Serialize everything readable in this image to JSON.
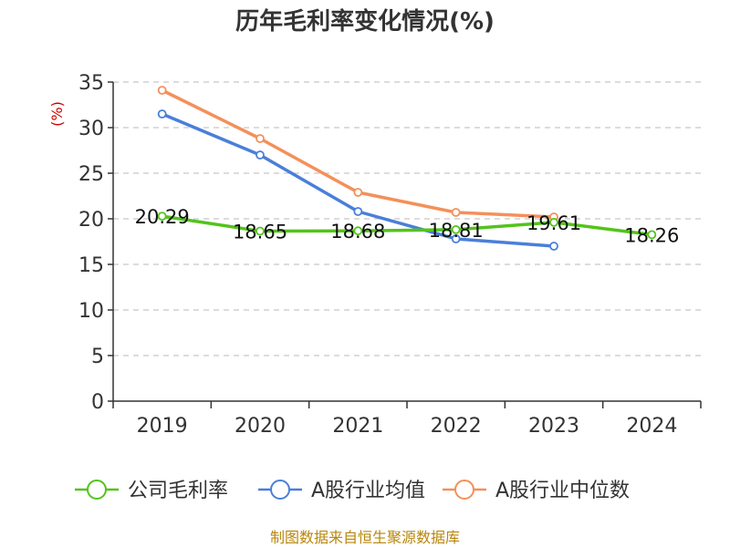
{
  "chart_data": {
    "type": "line",
    "title": "历年毛利率变化情况(%)",
    "ylabel": "(%)",
    "xlabel": "",
    "categories": [
      "2019",
      "2020",
      "2021",
      "2022",
      "2023",
      "2024"
    ],
    "ylim": [
      0,
      35
    ],
    "yticks": [
      0,
      5,
      10,
      15,
      20,
      25,
      30,
      35
    ],
    "grid": true,
    "legend_position": "bottom",
    "series": [
      {
        "name": "公司毛利率",
        "color": "#52c41a",
        "values": [
          20.29,
          18.65,
          18.68,
          18.81,
          19.61,
          18.26
        ],
        "labels": [
          "20.29",
          "18.65",
          "18.68",
          "18.81",
          "19.61",
          "18.26"
        ]
      },
      {
        "name": "A股行业均值",
        "color": "#4a7fd9",
        "values": [
          31.5,
          27.0,
          20.8,
          17.8,
          17.0,
          null
        ]
      },
      {
        "name": "A股行业中位数",
        "color": "#f4905a",
        "values": [
          34.1,
          28.8,
          22.9,
          20.7,
          20.2,
          null
        ]
      }
    ]
  },
  "source": "制图数据来自恒生聚源数据库"
}
